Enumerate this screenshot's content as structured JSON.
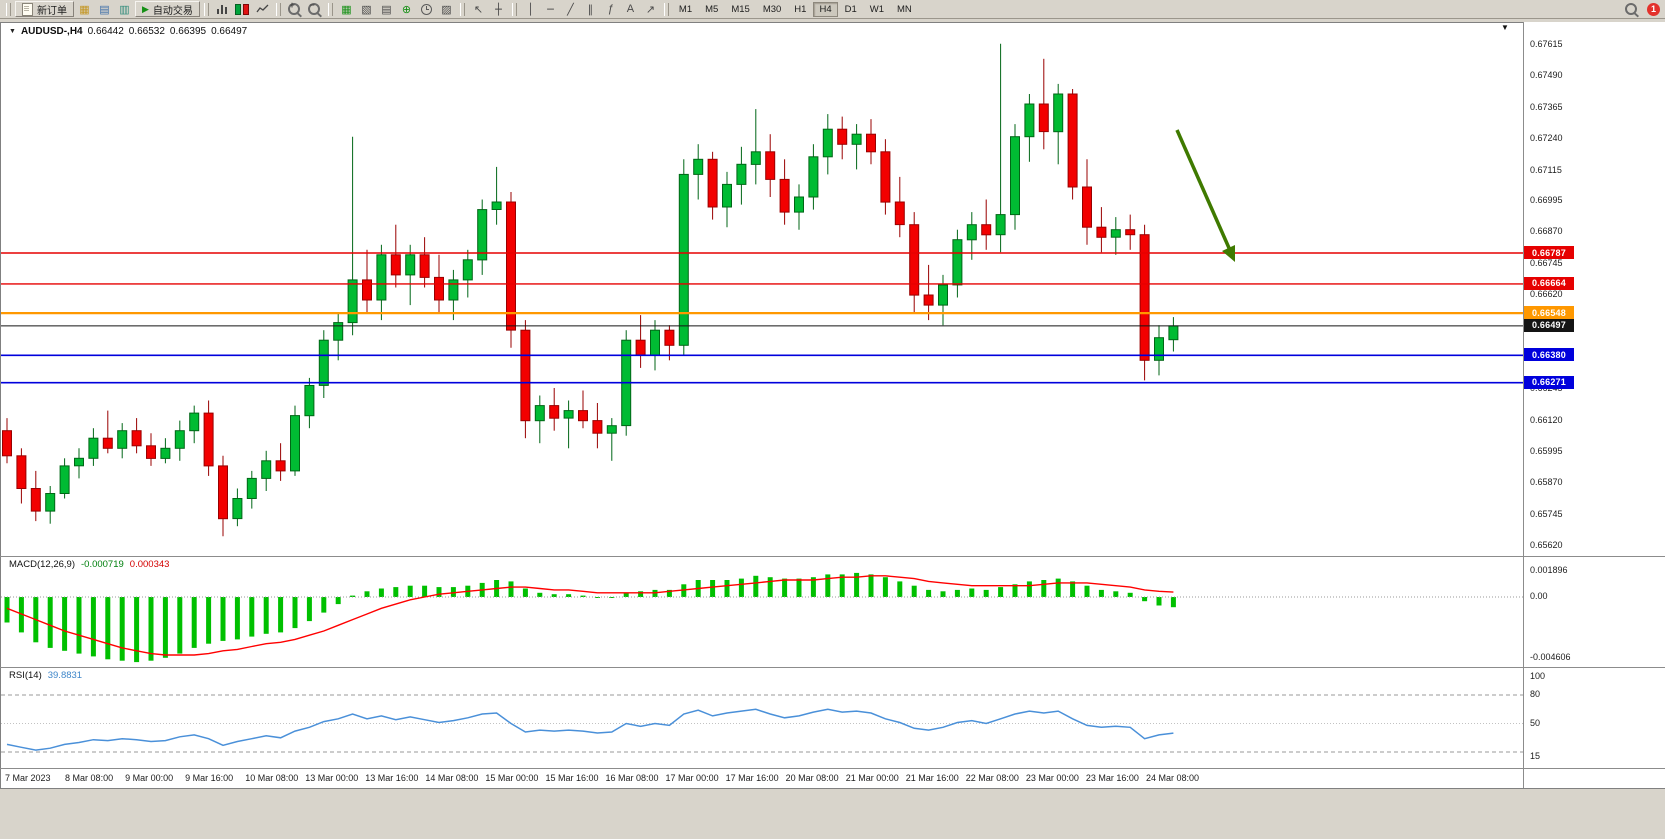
{
  "toolbar": {
    "new_order": "新订单",
    "autotrade": "自动交易",
    "timeframes": [
      "M1",
      "M5",
      "M15",
      "M30",
      "H1",
      "H4",
      "D1",
      "W1",
      "MN"
    ],
    "active_timeframe": "H4",
    "badge_count": "1"
  },
  "icons": {
    "dropdown": "▼",
    "shift_marker": "▼",
    "autotrade_play": "▶",
    "charts": "▦",
    "market_watch": "▤",
    "navigator": "▥",
    "tile": "▦",
    "cascade": "▧",
    "profiles": "▤",
    "indicators": "⊕",
    "templates": "▨",
    "cursor": "↖",
    "crosshair": "┼",
    "vline": "│",
    "hline": "─",
    "trendline": "╱",
    "channel": "∥",
    "fibonacci": "ƒ",
    "text_tool": "A",
    "arrows_tool": "↗"
  },
  "chart_header": {
    "symbol": "AUDUSD-,H4",
    "open": "0.66442",
    "high": "0.66532",
    "low": "0.66395",
    "close": "0.66497"
  },
  "price_axis_ticks": [
    "0.67615",
    "0.67490",
    "0.67365",
    "0.67240",
    "0.67115",
    "0.66995",
    "0.66870",
    "0.66745",
    "0.66620",
    "0.66495",
    "0.66370",
    "0.66245",
    "0.66120",
    "0.65995",
    "0.65870",
    "0.65745",
    "0.65620"
  ],
  "levels": [
    {
      "price": "0.66787",
      "value": 0.66787,
      "color": "#e60000",
      "style": "solid",
      "width": 1.4
    },
    {
      "price": "0.66664",
      "value": 0.66664,
      "color": "#e60000",
      "style": "solid",
      "width": 1.4
    },
    {
      "price": "0.66548",
      "value": 0.66548,
      "color": "#ff9800",
      "style": "solid",
      "width": 2.2
    },
    {
      "price": "0.66497",
      "value": 0.66497,
      "color": "#141414",
      "style": "solid",
      "width": 1
    },
    {
      "price": "0.66380",
      "value": 0.6638,
      "color": "#0000dc",
      "style": "solid",
      "width": 1.6
    },
    {
      "price": "0.66271",
      "value": 0.66271,
      "color": "#0000dc",
      "style": "solid",
      "width": 1.6
    }
  ],
  "time_axis": [
    "7 Mar 2023",
    "8 Mar 08:00",
    "9 Mar 00:00",
    "9 Mar 16:00",
    "10 Mar 08:00",
    "13 Mar 00:00",
    "13 Mar 16:00",
    "14 Mar 08:00",
    "15 Mar 00:00",
    "15 Mar 16:00",
    "16 Mar 08:00",
    "17 Mar 00:00",
    "17 Mar 16:00",
    "20 Mar 08:00",
    "21 Mar 00:00",
    "21 Mar 16:00",
    "22 Mar 08:00",
    "23 Mar 00:00",
    "23 Mar 16:00",
    "24 Mar 08:00"
  ],
  "macd_panel": {
    "label": "MACD(12,26,9)",
    "value": "-0.000719",
    "signal": "0.000343",
    "axis_max": "0.001896",
    "axis_zero": "0.00",
    "axis_min": "-0.004606"
  },
  "rsi_panel": {
    "label": "RSI(14)",
    "value": "39.8831",
    "axis": [
      "100",
      "80",
      "50",
      "15"
    ]
  },
  "colors": {
    "candle_up": "#00bb33",
    "candle_up_border": "#006616",
    "candle_down": "#f20000",
    "candle_down_border": "#990000",
    "macd_hist": "#00c000",
    "macd_signal": "#ff0000",
    "rsi_line": "#4a90d9",
    "arrow": "#3f7a00",
    "level_red": "#e60000",
    "level_orange": "#ff9800",
    "level_blue": "#0000dc",
    "bid_black": "#141414"
  },
  "chart_data": {
    "type": "candlestick",
    "symbol": "AUDUSD",
    "timeframe": "H4",
    "title": "AUDUSD-,H4  O 0.66442  H 0.66532  L 0.66395  C 0.66497",
    "y_axis_range": [
      0.6562,
      0.67615
    ],
    "horizontal_levels": [
      0.66787,
      0.66664,
      0.66548,
      0.66497,
      0.6638,
      0.66271
    ],
    "annotations": [
      {
        "type": "arrow",
        "direction": "down-right",
        "color": "#3f7a00",
        "meaning": "bearish-continuation"
      }
    ],
    "candles": [
      [
        0.6608,
        0.6613,
        0.6595,
        0.6598
      ],
      [
        0.6598,
        0.6601,
        0.6579,
        0.6585
      ],
      [
        0.6585,
        0.6592,
        0.6572,
        0.6576
      ],
      [
        0.6576,
        0.6586,
        0.6571,
        0.6583
      ],
      [
        0.6583,
        0.6597,
        0.6581,
        0.6594
      ],
      [
        0.6594,
        0.6601,
        0.6589,
        0.6597
      ],
      [
        0.6597,
        0.6609,
        0.6594,
        0.6605
      ],
      [
        0.6605,
        0.6616,
        0.6599,
        0.6601
      ],
      [
        0.6601,
        0.6611,
        0.6597,
        0.6608
      ],
      [
        0.6608,
        0.6613,
        0.6599,
        0.6602
      ],
      [
        0.6602,
        0.6607,
        0.6594,
        0.6597
      ],
      [
        0.6597,
        0.6605,
        0.6595,
        0.6601
      ],
      [
        0.6601,
        0.6612,
        0.6596,
        0.6608
      ],
      [
        0.6608,
        0.6618,
        0.6603,
        0.6615
      ],
      [
        0.6615,
        0.662,
        0.659,
        0.6594
      ],
      [
        0.6594,
        0.6598,
        0.6566,
        0.6573
      ],
      [
        0.6573,
        0.6585,
        0.657,
        0.6581
      ],
      [
        0.6581,
        0.6592,
        0.6577,
        0.6589
      ],
      [
        0.6589,
        0.66,
        0.6584,
        0.6596
      ],
      [
        0.6596,
        0.6603,
        0.6588,
        0.6592
      ],
      [
        0.6592,
        0.6618,
        0.659,
        0.6614
      ],
      [
        0.6614,
        0.6629,
        0.6609,
        0.6626
      ],
      [
        0.6626,
        0.6648,
        0.6621,
        0.6644
      ],
      [
        0.6644,
        0.6655,
        0.6636,
        0.6651
      ],
      [
        0.6651,
        0.6725,
        0.6646,
        0.6668
      ],
      [
        0.6668,
        0.668,
        0.6655,
        0.666
      ],
      [
        0.666,
        0.6682,
        0.6652,
        0.6678
      ],
      [
        0.6678,
        0.669,
        0.6665,
        0.667
      ],
      [
        0.667,
        0.6682,
        0.6658,
        0.6678
      ],
      [
        0.6678,
        0.6685,
        0.6665,
        0.6669
      ],
      [
        0.6669,
        0.6678,
        0.6655,
        0.666
      ],
      [
        0.666,
        0.6672,
        0.6652,
        0.6668
      ],
      [
        0.6668,
        0.668,
        0.6661,
        0.6676
      ],
      [
        0.6676,
        0.67,
        0.667,
        0.6696
      ],
      [
        0.6696,
        0.6713,
        0.669,
        0.6699
      ],
      [
        0.6699,
        0.6703,
        0.6641,
        0.6648
      ],
      [
        0.6648,
        0.6652,
        0.6605,
        0.6612
      ],
      [
        0.6612,
        0.6622,
        0.6603,
        0.6618
      ],
      [
        0.6618,
        0.6625,
        0.6608,
        0.6613
      ],
      [
        0.6613,
        0.662,
        0.6601,
        0.6616
      ],
      [
        0.6616,
        0.6624,
        0.6609,
        0.6612
      ],
      [
        0.6612,
        0.6619,
        0.6601,
        0.6607
      ],
      [
        0.6607,
        0.6613,
        0.6596,
        0.661
      ],
      [
        0.661,
        0.6648,
        0.6606,
        0.6644
      ],
      [
        0.6644,
        0.6654,
        0.6633,
        0.6638
      ],
      [
        0.6638,
        0.6652,
        0.6632,
        0.6648
      ],
      [
        0.6648,
        0.665,
        0.6636,
        0.6642
      ],
      [
        0.6642,
        0.6716,
        0.6638,
        0.671
      ],
      [
        0.671,
        0.6722,
        0.67,
        0.6716
      ],
      [
        0.6716,
        0.6719,
        0.6692,
        0.6697
      ],
      [
        0.6697,
        0.6711,
        0.6689,
        0.6706
      ],
      [
        0.6706,
        0.6721,
        0.6698,
        0.6714
      ],
      [
        0.6714,
        0.6736,
        0.6706,
        0.6719
      ],
      [
        0.6719,
        0.6726,
        0.6701,
        0.6708
      ],
      [
        0.6708,
        0.6716,
        0.669,
        0.6695
      ],
      [
        0.6695,
        0.6706,
        0.6688,
        0.6701
      ],
      [
        0.6701,
        0.6722,
        0.6696,
        0.6717
      ],
      [
        0.6717,
        0.6734,
        0.671,
        0.6728
      ],
      [
        0.6728,
        0.6733,
        0.6716,
        0.6722
      ],
      [
        0.6722,
        0.673,
        0.6712,
        0.6726
      ],
      [
        0.6726,
        0.6732,
        0.6714,
        0.6719
      ],
      [
        0.6719,
        0.6724,
        0.6694,
        0.6699
      ],
      [
        0.6699,
        0.6709,
        0.6685,
        0.669
      ],
      [
        0.669,
        0.6695,
        0.6655,
        0.6662
      ],
      [
        0.6662,
        0.6674,
        0.6652,
        0.6658
      ],
      [
        0.6658,
        0.667,
        0.665,
        0.6666
      ],
      [
        0.6666,
        0.6688,
        0.6661,
        0.6684
      ],
      [
        0.6684,
        0.6695,
        0.6676,
        0.669
      ],
      [
        0.669,
        0.67,
        0.668,
        0.6686
      ],
      [
        0.6686,
        0.6762,
        0.6679,
        0.6694
      ],
      [
        0.6694,
        0.673,
        0.6688,
        0.6725
      ],
      [
        0.6725,
        0.6742,
        0.6715,
        0.6738
      ],
      [
        0.6738,
        0.6756,
        0.672,
        0.6727
      ],
      [
        0.6727,
        0.6746,
        0.6714,
        0.6742
      ],
      [
        0.6742,
        0.6744,
        0.67,
        0.6705
      ],
      [
        0.6705,
        0.6716,
        0.6682,
        0.6689
      ],
      [
        0.6689,
        0.6697,
        0.6679,
        0.6685
      ],
      [
        0.6685,
        0.6693,
        0.6678,
        0.6688
      ],
      [
        0.6688,
        0.6694,
        0.668,
        0.6686
      ],
      [
        0.6686,
        0.669,
        0.6628,
        0.6636
      ],
      [
        0.6636,
        0.665,
        0.663,
        0.6645
      ],
      [
        0.66442,
        0.66532,
        0.66395,
        0.66497
      ]
    ],
    "macd": {
      "range": [
        -0.004606,
        0.001896
      ],
      "histogram": [
        -0.0018,
        -0.0025,
        -0.0032,
        -0.0036,
        -0.0038,
        -0.004,
        -0.0042,
        -0.0044,
        -0.0045,
        -0.0046,
        -0.0045,
        -0.0043,
        -0.004,
        -0.0036,
        -0.0033,
        -0.0031,
        -0.003,
        -0.0028,
        -0.0026,
        -0.0025,
        -0.0022,
        -0.0017,
        -0.0011,
        -0.0005,
        0.0001,
        0.0004,
        0.0006,
        0.0007,
        0.0008,
        0.0008,
        0.0007,
        0.0007,
        0.0008,
        0.001,
        0.0012,
        0.0011,
        0.0006,
        0.0003,
        0.0002,
        0.0002,
        0.0001,
        0.0,
        0.0,
        0.0003,
        0.0004,
        0.0005,
        0.0005,
        0.0009,
        0.0012,
        0.0012,
        0.0012,
        0.0013,
        0.0015,
        0.0014,
        0.0013,
        0.0013,
        0.0014,
        0.0016,
        0.0016,
        0.0017,
        0.0016,
        0.0014,
        0.0011,
        0.0008,
        0.0005,
        0.0004,
        0.0005,
        0.0006,
        0.0005,
        0.0007,
        0.0009,
        0.0011,
        0.0012,
        0.0013,
        0.0011,
        0.0008,
        0.0005,
        0.0004,
        0.0003,
        -0.0003,
        -0.0006,
        -0.000719
      ],
      "signal": [
        -0.0008,
        -0.0012,
        -0.0016,
        -0.002,
        -0.0024,
        -0.0027,
        -0.003,
        -0.0033,
        -0.0036,
        -0.0038,
        -0.004,
        -0.0041,
        -0.0041,
        -0.0041,
        -0.004,
        -0.0038,
        -0.0037,
        -0.0035,
        -0.0033,
        -0.0032,
        -0.003,
        -0.0027,
        -0.0024,
        -0.002,
        -0.0016,
        -0.0012,
        -0.0008,
        -0.0005,
        -0.0002,
        0.0,
        0.0002,
        0.0003,
        0.0004,
        0.0005,
        0.0006,
        0.0007,
        0.0007,
        0.0006,
        0.0005,
        0.0005,
        0.0004,
        0.0003,
        0.0003,
        0.0003,
        0.0003,
        0.0003,
        0.0004,
        0.0005,
        0.0006,
        0.0007,
        0.0008,
        0.0009,
        0.001,
        0.0011,
        0.0012,
        0.0012,
        0.0012,
        0.0013,
        0.0014,
        0.0014,
        0.0015,
        0.0015,
        0.0014,
        0.0013,
        0.0011,
        0.001,
        0.0009,
        0.0008,
        0.0008,
        0.0008,
        0.0008,
        0.0008,
        0.0009,
        0.001,
        0.001,
        0.001,
        0.0009,
        0.0008,
        0.0007,
        0.0005,
        0.0004,
        0.000343
      ]
    },
    "rsi": {
      "range": [
        15,
        100
      ],
      "levels": [
        80,
        50,
        20
      ],
      "values": [
        28,
        25,
        22,
        24,
        28,
        30,
        33,
        32,
        34,
        33,
        31,
        32,
        36,
        38,
        34,
        27,
        31,
        34,
        37,
        35,
        42,
        46,
        52,
        55,
        60,
        55,
        58,
        54,
        57,
        54,
        51,
        53,
        56,
        60,
        61,
        50,
        41,
        43,
        42,
        43,
        42,
        40,
        41,
        50,
        47,
        50,
        48,
        60,
        64,
        58,
        61,
        63,
        65,
        60,
        56,
        58,
        62,
        65,
        62,
        63,
        61,
        55,
        51,
        45,
        43,
        46,
        51,
        53,
        50,
        55,
        60,
        63,
        61,
        63,
        55,
        48,
        46,
        47,
        46,
        34,
        38,
        39.8831
      ]
    }
  }
}
